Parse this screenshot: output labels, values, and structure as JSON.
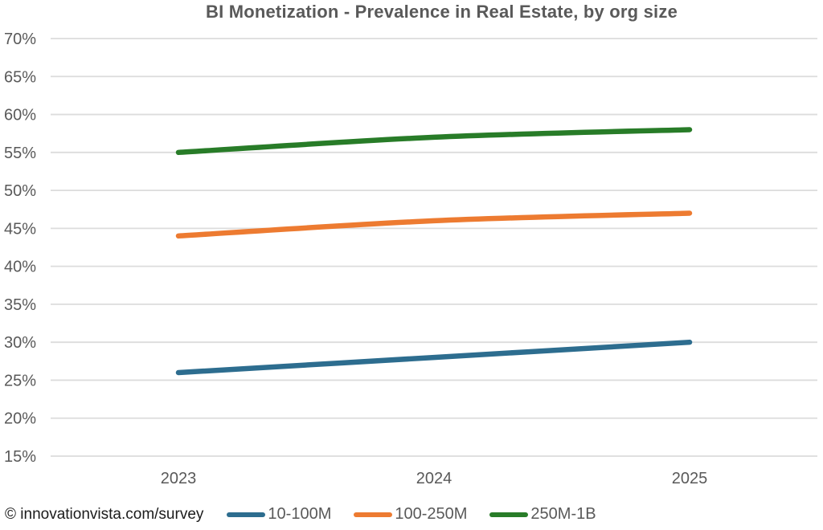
{
  "title": "BI Monetization - Prevalence in Real Estate, by org size",
  "footer": "© innovationvista.com/survey",
  "colors": {
    "title_text": "#595959",
    "axis_text": "#595959",
    "gridline": "#dcdcdc",
    "series_blue": "#2d6d8f",
    "series_orange": "#ed7b31",
    "series_green": "#287c28",
    "footer_text": "#1b1b1b"
  },
  "chart_data": {
    "type": "line",
    "title": "BI Monetization - Prevalence in Real Estate, by org size",
    "categories": [
      "2023",
      "2024",
      "2025"
    ],
    "series": [
      {
        "name": "10-100M",
        "color": "#2d6d8f",
        "values": [
          26,
          28,
          30
        ]
      },
      {
        "name": "100-250M",
        "color": "#ed7b31",
        "values": [
          44,
          46,
          47
        ]
      },
      {
        "name": "250M-1B",
        "color": "#287c28",
        "values": [
          55,
          57,
          58
        ]
      }
    ],
    "xlabel": "",
    "ylabel": "",
    "ylim": [
      15,
      70
    ],
    "ytick_step": 5,
    "ytick_suffix": "%",
    "grid": true,
    "legend_position": "bottom"
  }
}
